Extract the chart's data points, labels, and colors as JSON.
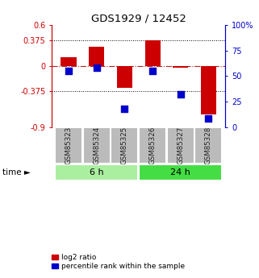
{
  "title": "GDS1929 / 12452",
  "samples": [
    "GSM85323",
    "GSM85324",
    "GSM85325",
    "GSM85326",
    "GSM85327",
    "GSM85328"
  ],
  "log2_ratio": [
    0.13,
    0.28,
    -0.32,
    0.37,
    -0.03,
    -0.72
  ],
  "percentile_rank": [
    55,
    58,
    18,
    55,
    32,
    8
  ],
  "left_ylim": [
    -0.9,
    0.6
  ],
  "right_ylim": [
    0,
    100
  ],
  "left_yticks": [
    -0.9,
    -0.375,
    0,
    0.375,
    0.6
  ],
  "left_yticklabels": [
    "-0.9",
    "-0.375",
    "0",
    "0.375",
    "0.6"
  ],
  "right_yticks": [
    0,
    25,
    50,
    75,
    100
  ],
  "right_yticklabels": [
    "0",
    "25",
    "50",
    "75",
    "100%"
  ],
  "hlines": [
    0.375,
    -0.375
  ],
  "zero_line": 0,
  "groups": [
    {
      "label": "6 h",
      "samples": [
        0,
        1,
        2
      ],
      "color": "#aaeea0"
    },
    {
      "label": "24 h",
      "samples": [
        3,
        4,
        5
      ],
      "color": "#44dd44"
    }
  ],
  "log2_color": "#cc0000",
  "percentile_color": "#0000cc",
  "bg_color": "#ffffff",
  "zero_line_color": "#bb2222",
  "sample_box_color": "#bbbbbb",
  "sample_box_edge": "#ffffff",
  "legend_labels": [
    "log2 ratio",
    "percentile rank within the sample"
  ],
  "time_label": "time ►"
}
